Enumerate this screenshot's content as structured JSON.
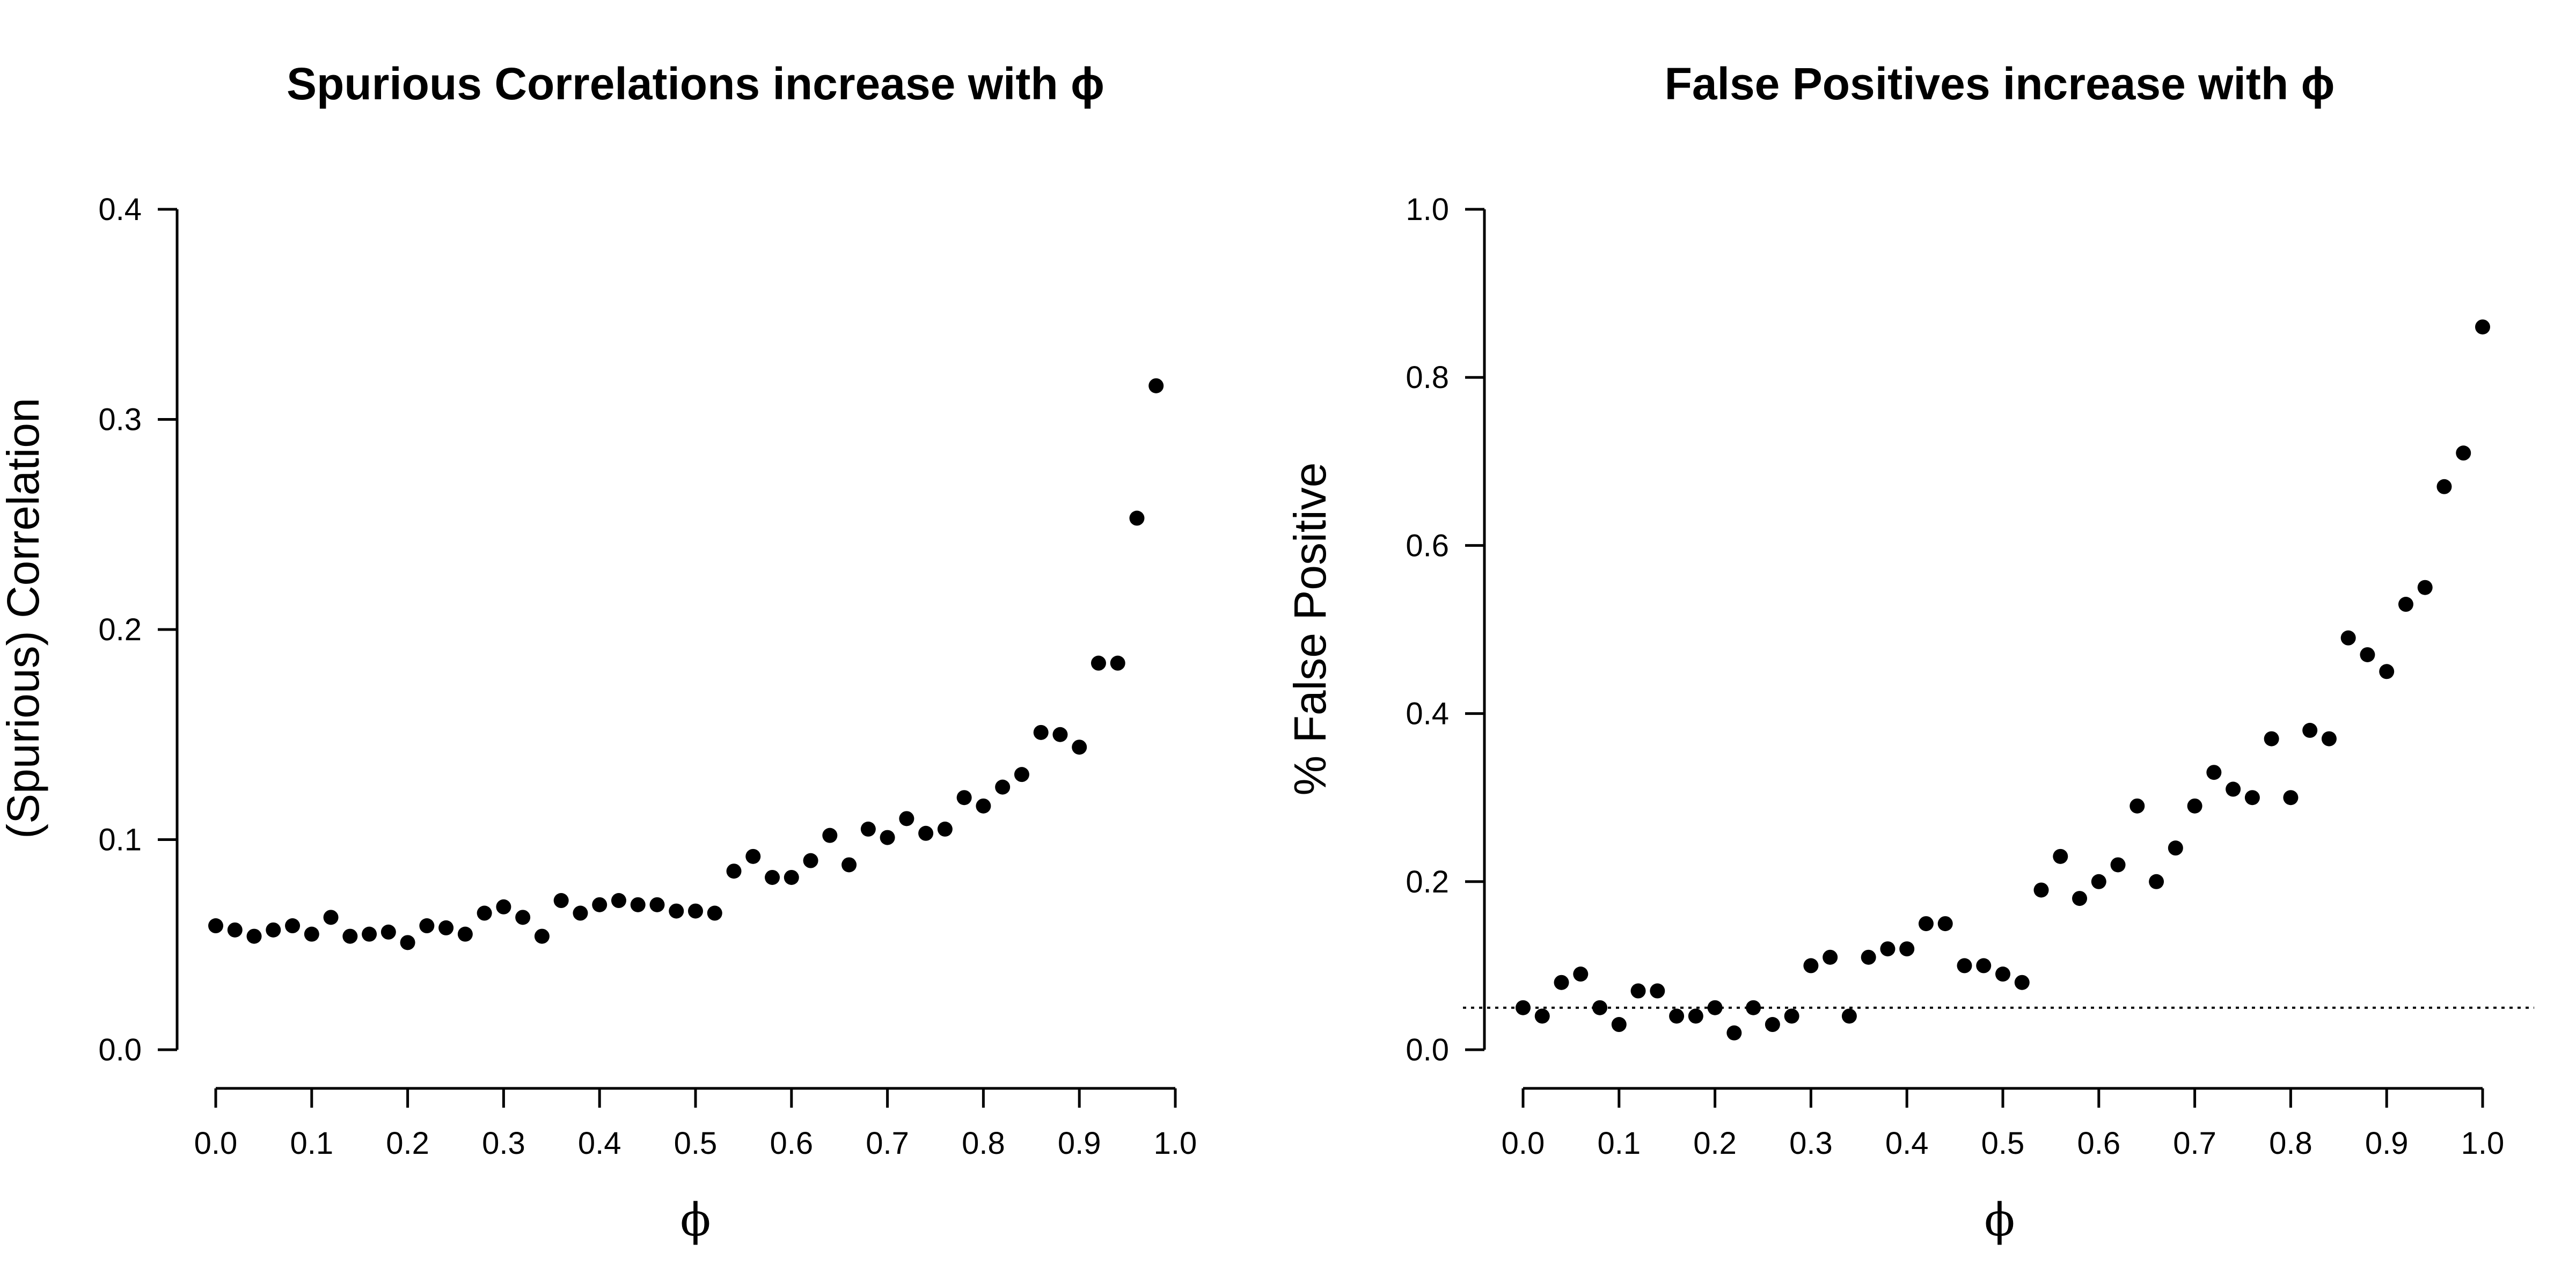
{
  "chart_data": [
    {
      "type": "scatter",
      "title": "Spurious Correlations increase with ϕ",
      "xlabel": "ϕ",
      "ylabel": "(Spurious) Correlation",
      "xlim": [
        0.0,
        1.0
      ],
      "ylim": [
        0.0,
        0.4
      ],
      "x_ticks": [
        "0.0",
        "0.1",
        "0.2",
        "0.3",
        "0.4",
        "0.5",
        "0.6",
        "0.7",
        "0.8",
        "0.9",
        "1.0"
      ],
      "y_ticks": [
        "0.0",
        "0.1",
        "0.2",
        "0.3",
        "0.4"
      ],
      "grid": false,
      "points": [
        [
          0.0,
          0.059
        ],
        [
          0.02,
          0.057
        ],
        [
          0.04,
          0.054
        ],
        [
          0.06,
          0.057
        ],
        [
          0.08,
          0.059
        ],
        [
          0.1,
          0.055
        ],
        [
          0.12,
          0.063
        ],
        [
          0.14,
          0.054
        ],
        [
          0.16,
          0.055
        ],
        [
          0.18,
          0.056
        ],
        [
          0.2,
          0.051
        ],
        [
          0.22,
          0.059
        ],
        [
          0.24,
          0.058
        ],
        [
          0.26,
          0.055
        ],
        [
          0.28,
          0.065
        ],
        [
          0.3,
          0.068
        ],
        [
          0.32,
          0.063
        ],
        [
          0.34,
          0.054
        ],
        [
          0.36,
          0.071
        ],
        [
          0.38,
          0.065
        ],
        [
          0.4,
          0.069
        ],
        [
          0.42,
          0.071
        ],
        [
          0.44,
          0.069
        ],
        [
          0.46,
          0.069
        ],
        [
          0.48,
          0.066
        ],
        [
          0.5,
          0.066
        ],
        [
          0.52,
          0.065
        ],
        [
          0.54,
          0.085
        ],
        [
          0.56,
          0.092
        ],
        [
          0.58,
          0.082
        ],
        [
          0.6,
          0.082
        ],
        [
          0.62,
          0.09
        ],
        [
          0.64,
          0.102
        ],
        [
          0.66,
          0.088
        ],
        [
          0.68,
          0.105
        ],
        [
          0.7,
          0.101
        ],
        [
          0.72,
          0.11
        ],
        [
          0.74,
          0.103
        ],
        [
          0.76,
          0.105
        ],
        [
          0.78,
          0.12
        ],
        [
          0.8,
          0.116
        ],
        [
          0.82,
          0.125
        ],
        [
          0.84,
          0.131
        ],
        [
          0.86,
          0.151
        ],
        [
          0.88,
          0.15
        ],
        [
          0.9,
          0.144
        ],
        [
          0.92,
          0.184
        ],
        [
          0.94,
          0.184
        ],
        [
          0.96,
          0.253
        ],
        [
          0.98,
          0.316
        ]
      ]
    },
    {
      "type": "scatter",
      "title": "False Positives increase with ϕ",
      "xlabel": "ϕ",
      "ylabel": "% False Positive",
      "xlim": [
        0.0,
        1.0
      ],
      "ylim": [
        0.0,
        1.0
      ],
      "x_ticks": [
        "0.0",
        "0.1",
        "0.2",
        "0.3",
        "0.4",
        "0.5",
        "0.6",
        "0.7",
        "0.8",
        "0.9",
        "1.0"
      ],
      "y_ticks": [
        "0.0",
        "0.2",
        "0.4",
        "0.6",
        "0.8",
        "1.0"
      ],
      "grid": false,
      "reference_line": {
        "y": 0.05,
        "style": "dotted"
      },
      "points": [
        [
          0.0,
          0.05
        ],
        [
          0.02,
          0.04
        ],
        [
          0.04,
          0.08
        ],
        [
          0.06,
          0.09
        ],
        [
          0.08,
          0.05
        ],
        [
          0.1,
          0.03
        ],
        [
          0.12,
          0.07
        ],
        [
          0.14,
          0.07
        ],
        [
          0.16,
          0.04
        ],
        [
          0.18,
          0.04
        ],
        [
          0.2,
          0.05
        ],
        [
          0.22,
          0.02
        ],
        [
          0.24,
          0.05
        ],
        [
          0.26,
          0.03
        ],
        [
          0.28,
          0.04
        ],
        [
          0.3,
          0.1
        ],
        [
          0.32,
          0.11
        ],
        [
          0.34,
          0.04
        ],
        [
          0.36,
          0.11
        ],
        [
          0.38,
          0.12
        ],
        [
          0.4,
          0.12
        ],
        [
          0.42,
          0.15
        ],
        [
          0.44,
          0.15
        ],
        [
          0.46,
          0.1
        ],
        [
          0.48,
          0.1
        ],
        [
          0.5,
          0.09
        ],
        [
          0.52,
          0.08
        ],
        [
          0.54,
          0.19
        ],
        [
          0.56,
          0.23
        ],
        [
          0.58,
          0.18
        ],
        [
          0.6,
          0.2
        ],
        [
          0.62,
          0.22
        ],
        [
          0.64,
          0.29
        ],
        [
          0.66,
          0.2
        ],
        [
          0.68,
          0.24
        ],
        [
          0.7,
          0.29
        ],
        [
          0.72,
          0.33
        ],
        [
          0.74,
          0.31
        ],
        [
          0.76,
          0.3
        ],
        [
          0.78,
          0.37
        ],
        [
          0.8,
          0.3
        ],
        [
          0.82,
          0.38
        ],
        [
          0.84,
          0.37
        ],
        [
          0.86,
          0.49
        ],
        [
          0.88,
          0.47
        ],
        [
          0.9,
          0.45
        ],
        [
          0.92,
          0.53
        ],
        [
          0.94,
          0.55
        ],
        [
          0.96,
          0.67
        ],
        [
          0.98,
          0.71
        ],
        [
          1.0,
          0.86
        ]
      ]
    }
  ]
}
